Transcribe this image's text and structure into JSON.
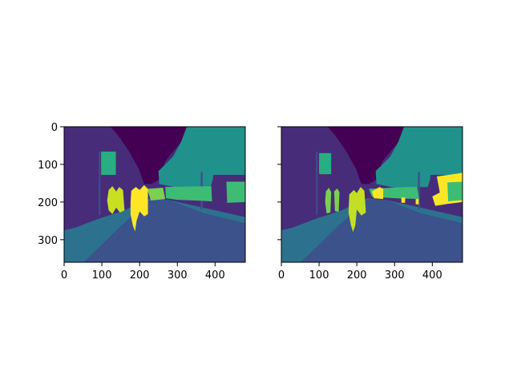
{
  "chart_data": [
    {
      "type": "heatmap",
      "colormap": "viridis",
      "image_size": [
        480,
        360
      ],
      "xlim": [
        0,
        480
      ],
      "ylim": [
        360,
        0
      ],
      "xticks": [
        0,
        100,
        200,
        300,
        400
      ],
      "yticks": [
        0,
        100,
        200,
        300
      ],
      "xtick_labels": [
        "0",
        "100",
        "200",
        "300",
        "400"
      ],
      "ytick_labels": [
        "0",
        "100",
        "200",
        "300"
      ],
      "grid": false
    },
    {
      "type": "heatmap",
      "colormap": "viridis",
      "image_size": [
        480,
        360
      ],
      "xlim": [
        0,
        480
      ],
      "ylim": [
        360,
        0
      ],
      "xticks": [
        0,
        100,
        200,
        300,
        400
      ],
      "yticks": [
        0,
        100,
        200,
        300
      ],
      "xtick_labels": [
        "0",
        "100",
        "200",
        "300",
        "400"
      ],
      "ytick_labels": [],
      "grid": false
    }
  ],
  "colors": {
    "sky": "#440154",
    "building": "#472c7a",
    "road": "#3b528b",
    "sidewalk": "#2c728e",
    "vegetation": "#21918c",
    "sign": "#28ae80",
    "green_class": "#3fbc73",
    "lightgreen_class": "#7ad151",
    "yellowgreen_class": "#c2df23",
    "yellow_class": "#fde725"
  }
}
